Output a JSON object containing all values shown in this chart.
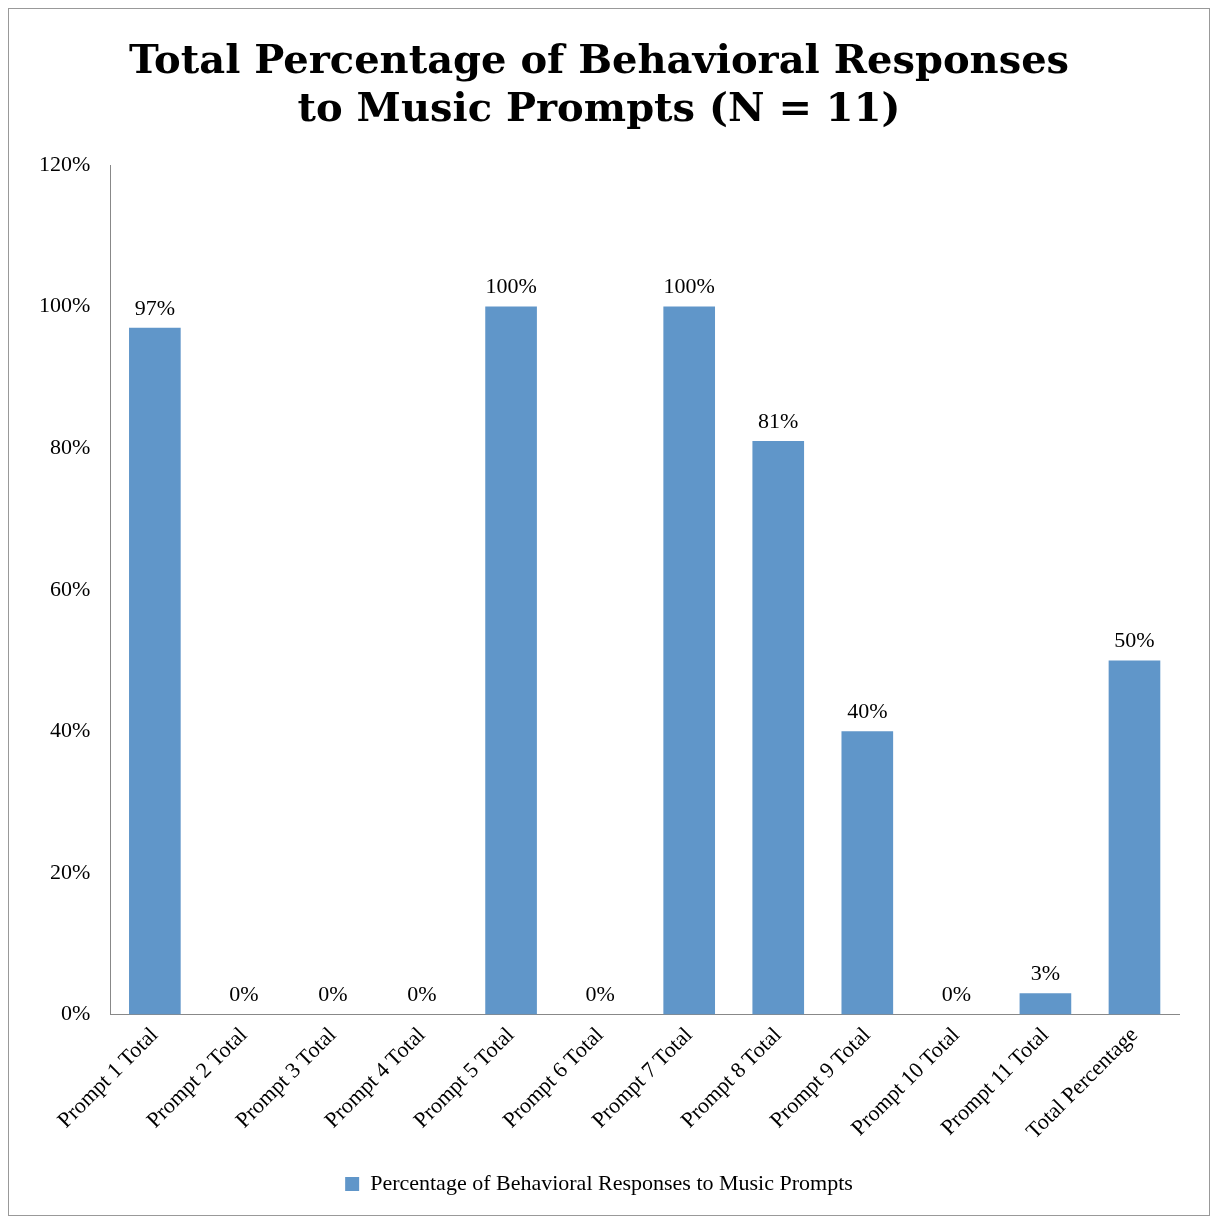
{
  "chart_data": {
    "type": "bar",
    "title": "Total Percentage of Behavioral Responses\nto Music Prompts (N = 11)",
    "categories": [
      "Prompt 1 Total",
      "Prompt 2 Total",
      "Prompt 3 Total",
      "Prompt 4 Total",
      "Prompt 5 Total",
      "Prompt 6 Total",
      "Prompt 7 Total",
      "Prompt 8 Total",
      "Prompt 9 Total",
      "Prompt 10 Total",
      "Prompt 11 Total",
      "Total Percentage"
    ],
    "series": [
      {
        "name": "Percentage of Behavioral Responses to Music Prompts",
        "color": "#6096c9",
        "values": [
          97,
          0,
          0,
          0,
          100,
          0,
          100,
          81,
          40,
          0,
          3,
          50
        ],
        "value_labels": [
          "97%",
          "0%",
          "0%",
          "0%",
          "100%",
          "0%",
          "100%",
          "81%",
          "40%",
          "0%",
          "3%",
          "50%"
        ]
      }
    ],
    "ylim": [
      0,
      120
    ],
    "yticks": [
      {
        "value": 0,
        "label": "0%"
      },
      {
        "value": 20,
        "label": "20%"
      },
      {
        "value": 40,
        "label": "40%"
      },
      {
        "value": 60,
        "label": "60%"
      },
      {
        "value": 80,
        "label": "80%"
      },
      {
        "value": 100,
        "label": "100%"
      },
      {
        "value": 120,
        "label": "120%"
      }
    ],
    "grid": false,
    "legend": "bottom"
  }
}
